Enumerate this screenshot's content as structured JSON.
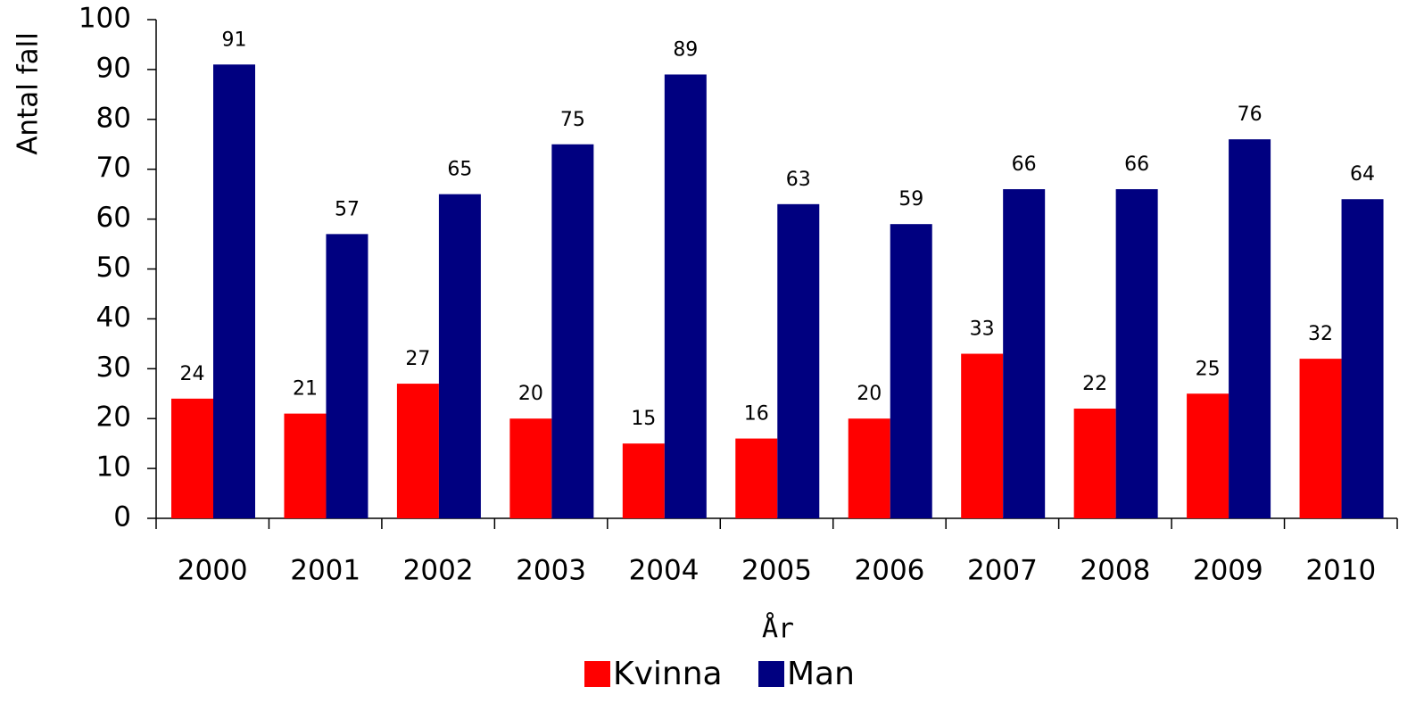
{
  "chart_data": {
    "type": "bar",
    "x_label": "År",
    "y_label": "Antal fall",
    "categories": [
      "2000",
      "2001",
      "2002",
      "2003",
      "2004",
      "2005",
      "2006",
      "2007",
      "2008",
      "2009",
      "2010"
    ],
    "series": [
      {
        "name": "Kvinna",
        "color": "#ff0000",
        "values": [
          24,
          21,
          27,
          20,
          15,
          16,
          20,
          33,
          22,
          25,
          32
        ]
      },
      {
        "name": "Man",
        "color": "#000080",
        "values": [
          91,
          57,
          65,
          75,
          89,
          63,
          59,
          66,
          66,
          76,
          64
        ]
      }
    ],
    "ylim": [
      0,
      100
    ],
    "yticks": [
      0,
      10,
      20,
      30,
      40,
      50,
      60,
      70,
      80,
      90,
      100
    ],
    "legend": "bottom"
  }
}
